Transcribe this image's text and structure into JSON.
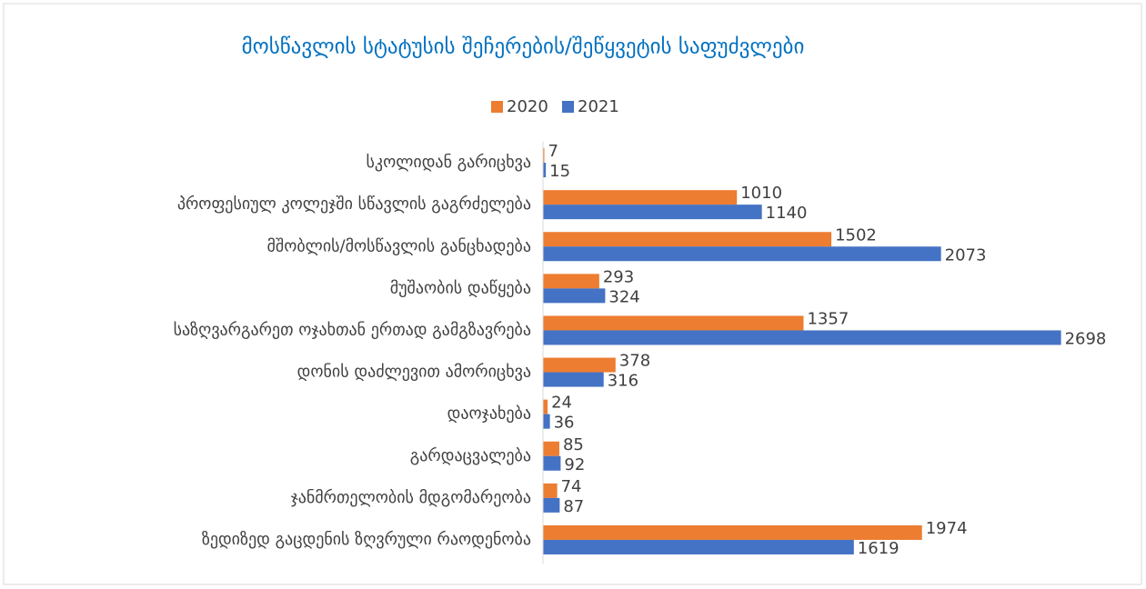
{
  "chart_data": {
    "type": "hbar",
    "title": "მოსწავლის სტატუსის შეჩერების/შეწყვეტის საფუძვლები",
    "categories": [
      "სკოლიდან გარიცხვა",
      "პროფესიულ კოლეჯში სწავლის გაგრძელება",
      "მშობლის/მოსწავლის განცხადება",
      "მუშაობის დაწყება",
      "საზღვარგარეთ ოჯახთან ერთად გამგზავრება",
      "დონის დაძლევით ამორიცხვა",
      "დაოჯახება",
      "გარდაცვალება",
      "ჯანმრთელობის მდგომარეობა",
      "ზედიზედ  გაცდენის  ზღვრული რაოდენობა"
    ],
    "series": [
      {
        "name": "2020",
        "color": "#ed7d31",
        "values": [
          7,
          1010,
          1502,
          293,
          1357,
          378,
          24,
          85,
          74,
          1974
        ]
      },
      {
        "name": "2021",
        "color": "#4472c4",
        "values": [
          15,
          1140,
          2073,
          324,
          2698,
          316,
          36,
          92,
          87,
          1619
        ]
      }
    ],
    "xlim": [
      0,
      2700
    ],
    "legend": "top"
  }
}
